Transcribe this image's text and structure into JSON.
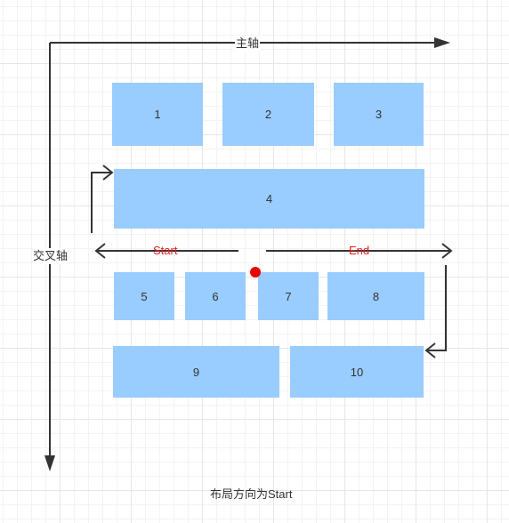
{
  "axes": {
    "main_axis_label": "主轴",
    "cross_axis_label": "交叉轴"
  },
  "flow": {
    "start_label": "Start",
    "end_label": "End"
  },
  "items": [
    {
      "label": "1"
    },
    {
      "label": "2"
    },
    {
      "label": "3"
    },
    {
      "label": "4"
    },
    {
      "label": "5"
    },
    {
      "label": "6"
    },
    {
      "label": "7"
    },
    {
      "label": "8"
    },
    {
      "label": "9"
    },
    {
      "label": "10"
    }
  ],
  "caption": "布局方向为Start",
  "colors": {
    "item_fill": "#99ccff",
    "axis_stroke": "#333333",
    "label_red": "#e02020",
    "marker_red": "#ee0000",
    "grid_line": "#e6e6e6"
  }
}
